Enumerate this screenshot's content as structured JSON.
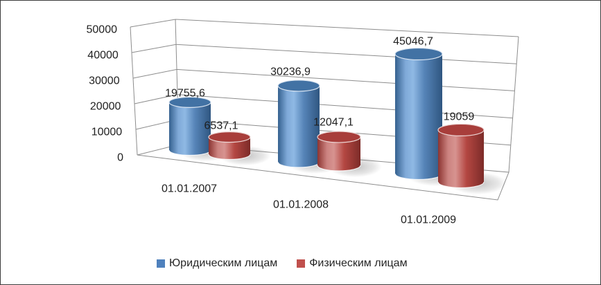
{
  "window": {
    "background": "#FFFFFF",
    "border_color": "#3C3C3C"
  },
  "chart_data": {
    "type": "bar",
    "variant": "3d-cylinder",
    "title": "",
    "categories": [
      "01.01.2007",
      "01.01.2008",
      "01.01.2009"
    ],
    "series": [
      {
        "name": "Юридическим лицам",
        "color": "#4F81BD",
        "values": [
          19755.6,
          30236.9,
          45046.7
        ],
        "data_labels": [
          "19755,6",
          "30236,9",
          "45046,7"
        ]
      },
      {
        "name": "Физическим лицам",
        "color": "#C0504D",
        "values": [
          6537.1,
          12047.1,
          19059
        ],
        "data_labels": [
          "6537,1",
          "12047,1",
          "19059"
        ]
      }
    ],
    "value_axis": {
      "min": 0,
      "max": 50000,
      "step": 10000,
      "tick_labels": [
        "0",
        "10000",
        "20000",
        "30000",
        "40000",
        "50000"
      ]
    },
    "category_axis": {
      "tick_labels": [
        "01.01.2007",
        "01.01.2008",
        "01.01.2009"
      ]
    },
    "legend_position": "bottom",
    "gridlines": true
  },
  "legend": {
    "items": [
      {
        "label": "Юридическим лицам",
        "swatch_color": "#4F81BD"
      },
      {
        "label": "Физическим лицам",
        "swatch_color": "#C0504D"
      }
    ]
  },
  "palette": {
    "gridline": "#8C8C8C",
    "text": "#1F1F1F",
    "blue": {
      "body": [
        "#35618F",
        "#7FA9D8",
        "#8FB9E4",
        "#5684B8",
        "#2F5680"
      ],
      "top": "#4272A4",
      "rim": "#DCE6F2"
    },
    "red": {
      "body": [
        "#8C3431",
        "#CC8380",
        "#D79390",
        "#B44742",
        "#7C2B28"
      ],
      "top": "#A83E3B",
      "rim": "#EDD7D6"
    }
  }
}
